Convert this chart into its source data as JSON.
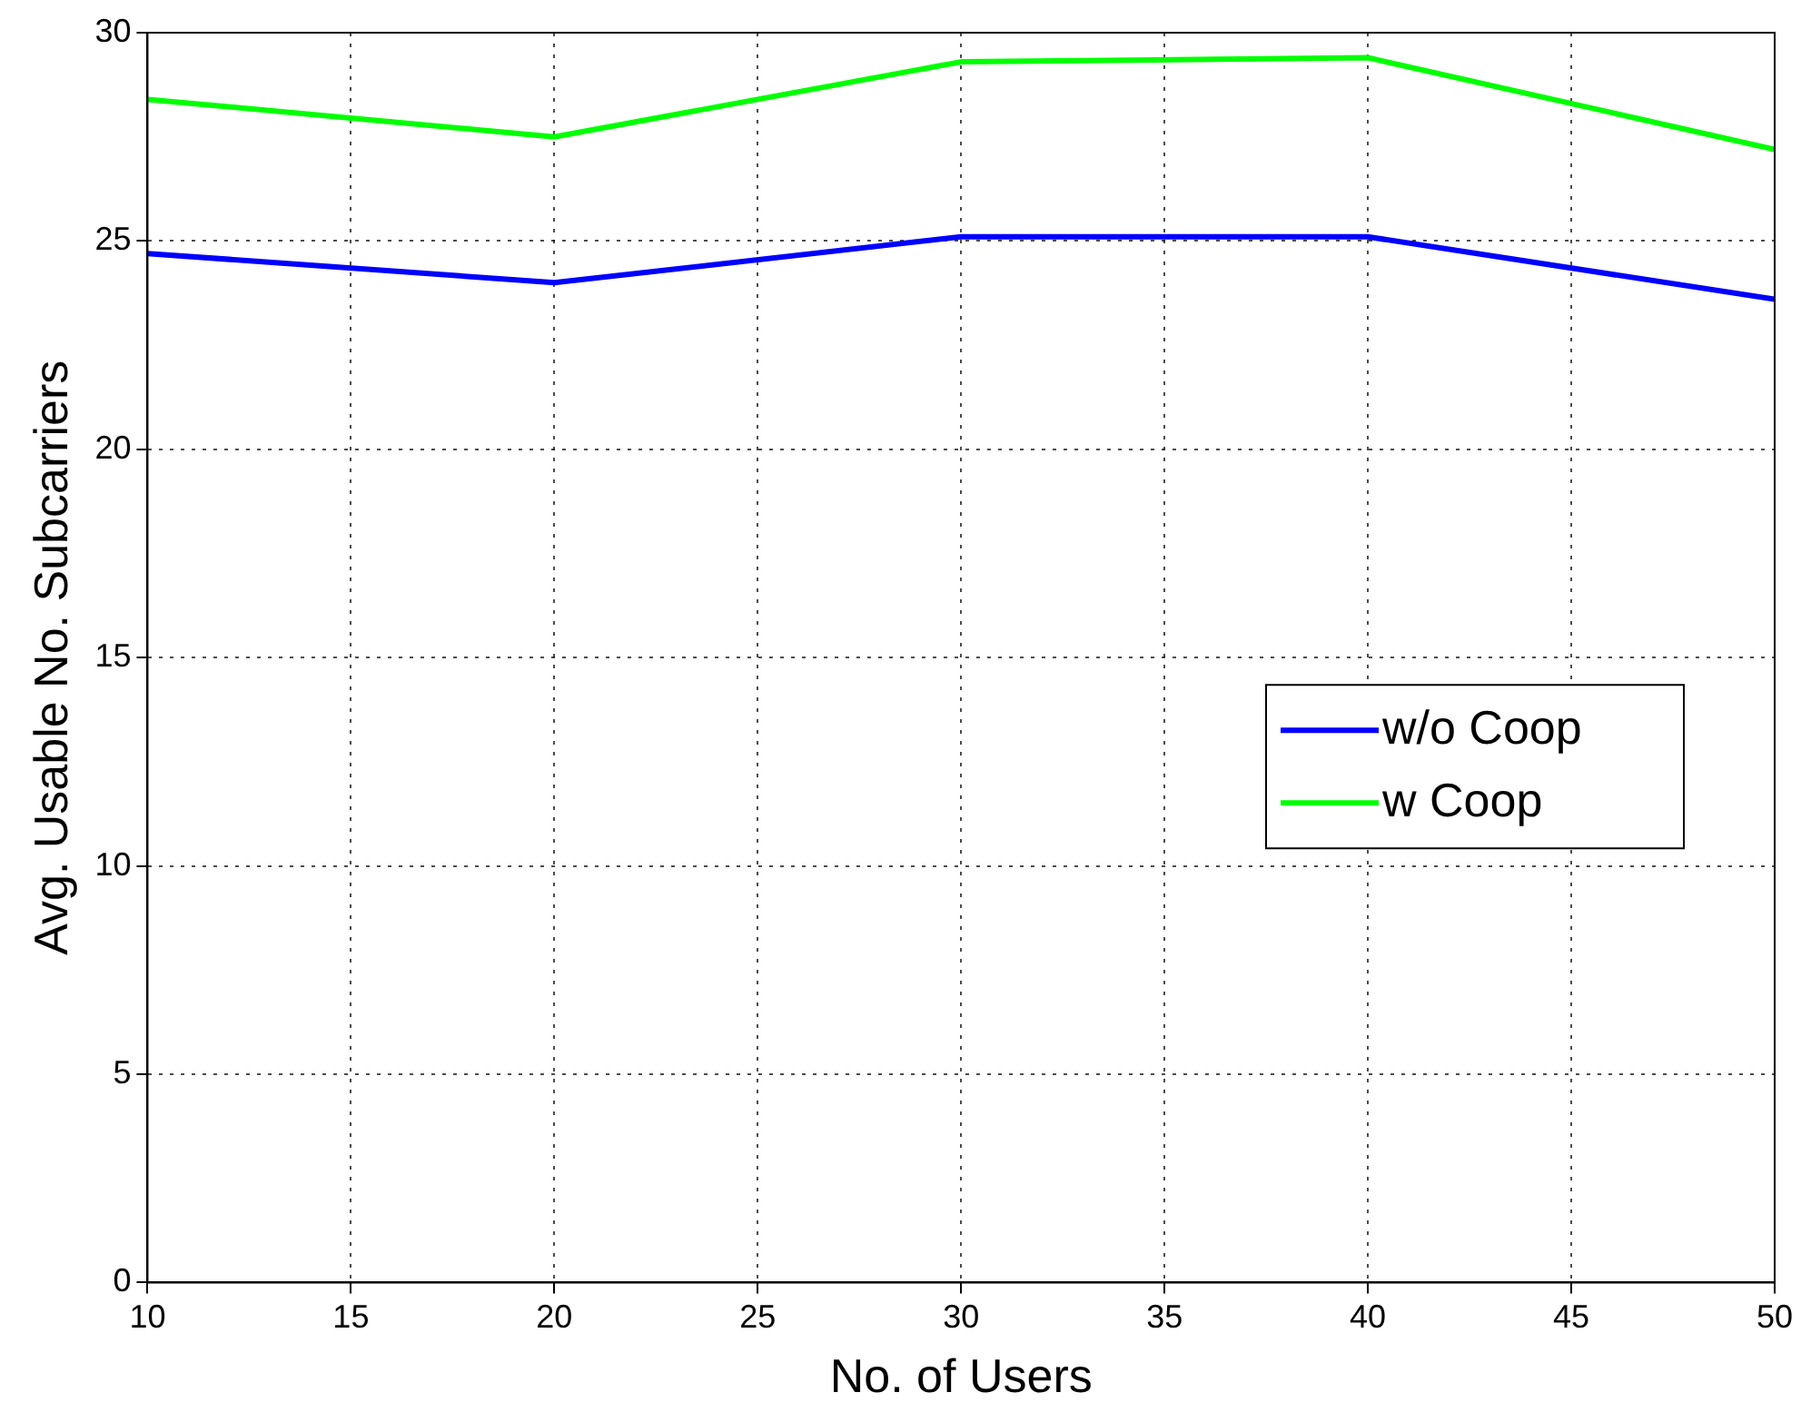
{
  "chart_data": {
    "type": "line",
    "xlabel": "No. of Users",
    "ylabel": "Avg. Usable No. Subcarriers",
    "x": [
      10,
      20,
      30,
      40,
      50
    ],
    "series": [
      {
        "name": "w/o Coop",
        "color": "#0000ff",
        "values": [
          24.7,
          24.0,
          25.1,
          25.1,
          23.6
        ]
      },
      {
        "name": "w Coop",
        "color": "#00ff00",
        "values": [
          28.4,
          27.5,
          29.3,
          29.4,
          27.2
        ]
      }
    ],
    "xlim": [
      10,
      50
    ],
    "xticks": [
      10,
      15,
      20,
      25,
      30,
      35,
      40,
      45,
      50
    ],
    "ylim": [
      0,
      30
    ],
    "yticks": [
      0,
      5,
      10,
      15,
      20,
      25,
      30
    ],
    "grid": true,
    "legend": "right",
    "marker": "none",
    "line_style": "solid"
  }
}
